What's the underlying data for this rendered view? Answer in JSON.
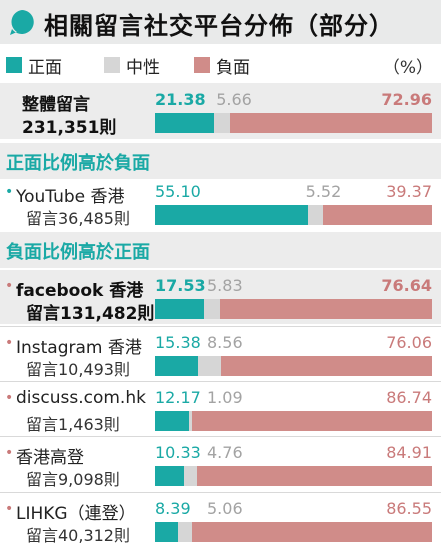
{
  "title": "相關留言社交平台分佈（部分）",
  "legend": {
    "positive": "正面",
    "neutral": "中性",
    "negative": "負面",
    "unit": "（%）"
  },
  "colors": {
    "positive": "#1aa9a5",
    "neutral": "#d6d6d6",
    "negative": "#d08c89"
  },
  "chart_data": {
    "type": "bar",
    "stacked": true,
    "unit": "%",
    "series_names": [
      "正面",
      "中性",
      "負面"
    ],
    "total": {
      "name": "整體留言",
      "comments": "231,351則",
      "values": [
        21.38,
        5.66,
        72.96
      ]
    },
    "sections": [
      {
        "heading": "正面比例高於負面",
        "rows": [
          {
            "name": "YouTube 香港",
            "comments": "留言36,485則",
            "values": [
              55.1,
              5.52,
              39.37
            ]
          }
        ]
      },
      {
        "heading": "負面比例高於正面",
        "rows": [
          {
            "name": "facebook 香港",
            "comments": "留言131,482則",
            "values": [
              17.53,
              5.83,
              76.64
            ]
          },
          {
            "name": "Instagram 香港",
            "comments": "留言10,493則",
            "values": [
              15.38,
              8.56,
              76.06
            ]
          },
          {
            "name": "discuss.com.hk",
            "comments": "留言1,463則",
            "values": [
              12.17,
              1.09,
              86.74
            ]
          },
          {
            "name": "香港高登",
            "comments": "留言9,098則",
            "values": [
              10.33,
              4.76,
              84.91
            ]
          },
          {
            "name": "LIHKG（連登）",
            "comments": "留言40,312則",
            "values": [
              8.39,
              5.06,
              86.55
            ]
          }
        ]
      }
    ]
  }
}
